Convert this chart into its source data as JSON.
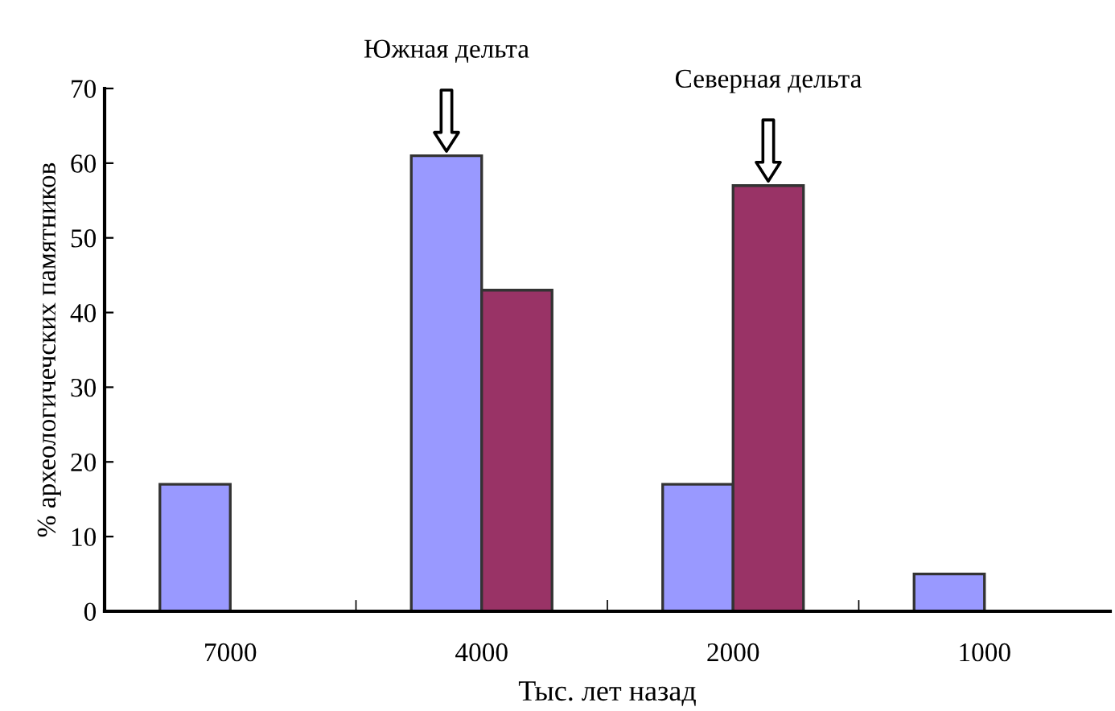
{
  "chart_data": {
    "type": "bar",
    "xlabel": "Тыс. лет назад",
    "ylabel": "% археологичечских памятников",
    "categories": [
      "7000",
      "4000",
      "2000",
      "1000"
    ],
    "series": [
      {
        "color": "#9999ff",
        "values": [
          17,
          61,
          17,
          5
        ]
      },
      {
        "color": "#993366",
        "values": [
          null,
          43,
          57,
          null
        ]
      }
    ],
    "ylim": [
      0,
      70
    ],
    "yticks": [
      0,
      10,
      20,
      30,
      40,
      50,
      60,
      70
    ],
    "grid": false,
    "legend": false,
    "annotations": [
      "Южная дельта",
      "Северная дельта"
    ]
  }
}
